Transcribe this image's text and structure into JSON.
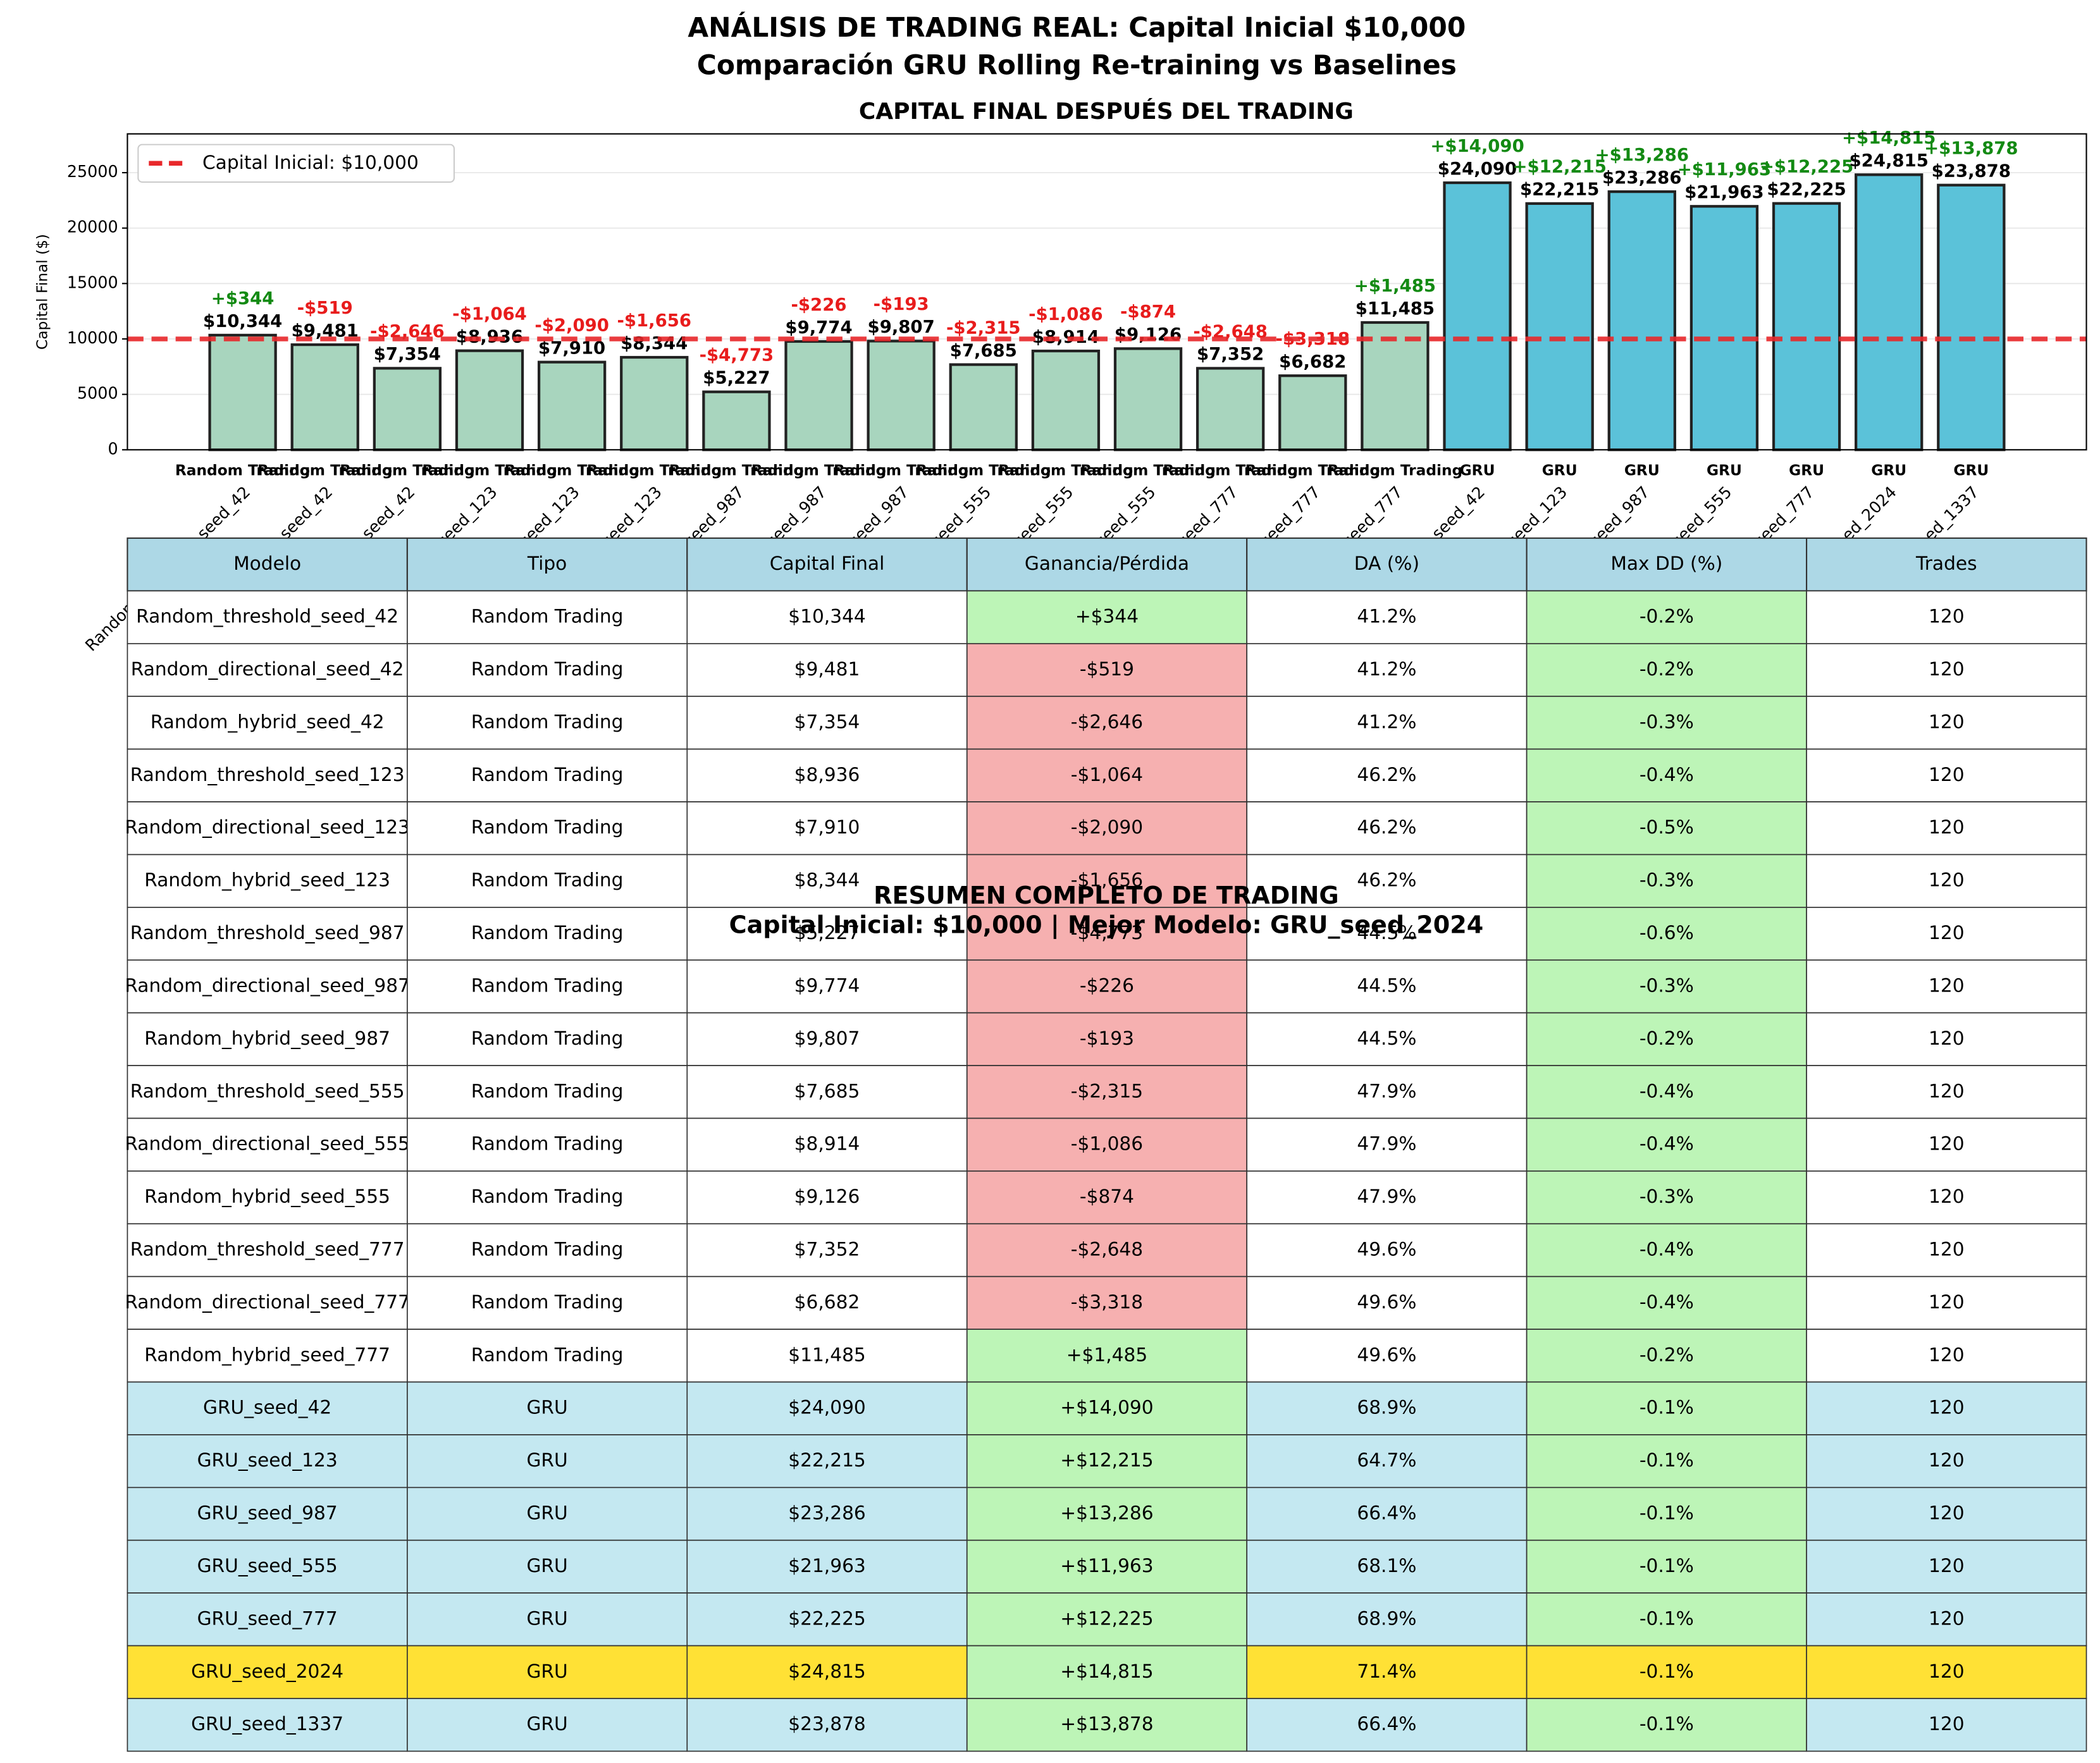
{
  "chart_data": {
    "type": "bar",
    "title": "ANÁLISIS DE TRADING REAL: Capital Inicial $10,000",
    "subtitle": "Comparación GRU Rolling Re-training vs Baselines",
    "chart_title": "CAPITAL FINAL DESPUÉS DEL TRADING",
    "y_label": "Capital Final ($)",
    "values": [
      10344,
      9481,
      7354,
      8936,
      7910,
      8344,
      5227,
      9774,
      9807,
      7685,
      8914,
      9126,
      7352,
      6682,
      11485,
      24090,
      22215,
      23286,
      21963,
      22225,
      24815,
      23878
    ],
    "type_colors": [
      "#a8d5be",
      "#5bc2d9"
    ],
    "ylim": [
      0,
      28500
    ],
    "yticks": [
      0,
      5000,
      10000,
      15000,
      20000,
      25000
    ],
    "grid": true,
    "reference": {
      "value": 10000,
      "label": "Capital Inicial: $10,000",
      "color": "#e8282b"
    },
    "legend": "upper left"
  },
  "table": {
    "header": [
      "Modelo",
      "Tipo",
      "Capital Final",
      "Ganancia/Pérdida",
      "DA (%)",
      "Max DD (%)",
      "Trades"
    ],
    "rows": [
      [
        "Random_threshold_seed_42",
        "Random Trading",
        "$10,344",
        "+$344",
        "41.2%",
        "-0.2%",
        "120"
      ],
      [
        "Random_directional_seed_42",
        "Random Trading",
        "$9,481",
        "-$519",
        "41.2%",
        "-0.2%",
        "120"
      ],
      [
        "Random_hybrid_seed_42",
        "Random Trading",
        "$7,354",
        "-$2,646",
        "41.2%",
        "-0.3%",
        "120"
      ],
      [
        "Random_threshold_seed_123",
        "Random Trading",
        "$8,936",
        "-$1,064",
        "46.2%",
        "-0.4%",
        "120"
      ],
      [
        "Random_directional_seed_123",
        "Random Trading",
        "$7,910",
        "-$2,090",
        "46.2%",
        "-0.5%",
        "120"
      ],
      [
        "Random_hybrid_seed_123",
        "Random Trading",
        "$8,344",
        "-$1,656",
        "46.2%",
        "-0.3%",
        "120"
      ],
      [
        "Random_threshold_seed_987",
        "Random Trading",
        "$5,227",
        "-$4,773",
        "44.5%",
        "-0.6%",
        "120"
      ],
      [
        "Random_directional_seed_987",
        "Random Trading",
        "$9,774",
        "-$226",
        "44.5%",
        "-0.3%",
        "120"
      ],
      [
        "Random_hybrid_seed_987",
        "Random Trading",
        "$9,807",
        "-$193",
        "44.5%",
        "-0.2%",
        "120"
      ],
      [
        "Random_threshold_seed_555",
        "Random Trading",
        "$7,685",
        "-$2,315",
        "47.9%",
        "-0.4%",
        "120"
      ],
      [
        "Random_directional_seed_555",
        "Random Trading",
        "$8,914",
        "-$1,086",
        "47.9%",
        "-0.4%",
        "120"
      ],
      [
        "Random_hybrid_seed_555",
        "Random Trading",
        "$9,126",
        "-$874",
        "47.9%",
        "-0.3%",
        "120"
      ],
      [
        "Random_threshold_seed_777",
        "Random Trading",
        "$7,352",
        "-$2,648",
        "49.6%",
        "-0.4%",
        "120"
      ],
      [
        "Random_directional_seed_777",
        "Random Trading",
        "$6,682",
        "-$3,318",
        "49.6%",
        "-0.4%",
        "120"
      ],
      [
        "Random_hybrid_seed_777",
        "Random Trading",
        "$11,485",
        "+$1,485",
        "49.6%",
        "-0.2%",
        "120"
      ],
      [
        "GRU_seed_42",
        "GRU",
        "$24,090",
        "+$14,090",
        "68.9%",
        "-0.1%",
        "120"
      ],
      [
        "GRU_seed_123",
        "GRU",
        "$22,215",
        "+$12,215",
        "64.7%",
        "-0.1%",
        "120"
      ],
      [
        "GRU_seed_987",
        "GRU",
        "$23,286",
        "+$13,286",
        "66.4%",
        "-0.1%",
        "120"
      ],
      [
        "GRU_seed_555",
        "GRU",
        "$21,963",
        "+$11,963",
        "68.1%",
        "-0.1%",
        "120"
      ],
      [
        "GRU_seed_777",
        "GRU",
        "$22,225",
        "+$12,225",
        "68.9%",
        "-0.1%",
        "120"
      ],
      [
        "GRU_seed_2024",
        "GRU",
        "$24,815",
        "+$14,815",
        "71.4%",
        "-0.1%",
        "120"
      ],
      [
        "GRU_seed_1337",
        "GRU",
        "$23,878",
        "+$13,878",
        "66.4%",
        "-0.1%",
        "120"
      ]
    ],
    "title": "RESUMEN COMPLETO DE TRADING",
    "subtitle": "Capital Inicial: $10,000 | Mejor Modelo: GRU_seed_2024"
  }
}
